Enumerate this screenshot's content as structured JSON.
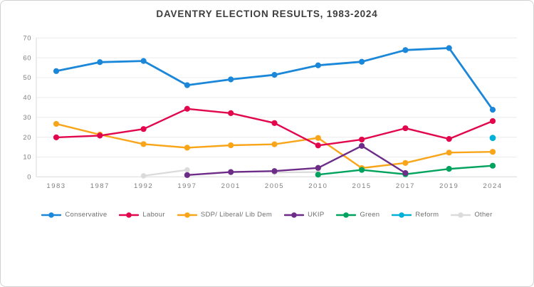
{
  "page": {
    "background": "#ffffff",
    "frame_border_color": "#d2d2d2",
    "gridline_color": "#ececec",
    "axis_line_color": "#d9d9d9",
    "tick_label_color": "#7f7f7f",
    "title_color": "#3e3e3e",
    "legend_text_color": "#6e6e6e"
  },
  "chart_data": {
    "type": "line",
    "title": "DAVENTRY ELECTION RESULTS, 1983-2024",
    "xlabel": "",
    "ylabel": "",
    "ylim": [
      0,
      70
    ],
    "yticks": [
      0,
      10,
      20,
      30,
      40,
      50,
      60,
      70
    ],
    "grid": true,
    "legend_position": "bottom",
    "categories": [
      "1983",
      "1987",
      "1992",
      "1997",
      "2001",
      "2005",
      "2010",
      "2015",
      "2017",
      "2019",
      "2024"
    ],
    "series": [
      {
        "name": "Conservative",
        "color": "#1b87d8",
        "values": [
          53.3,
          57.8,
          58.4,
          46.2,
          49.1,
          51.4,
          56.2,
          58.0,
          63.9,
          64.9,
          33.8
        ]
      },
      {
        "name": "Labour",
        "color": "#e2074d",
        "values": [
          19.9,
          20.8,
          24.1,
          34.3,
          32.1,
          27.1,
          15.8,
          18.8,
          24.5,
          19.1,
          28.1
        ]
      },
      {
        "name": "SDP/ Liberal/ Lib Dem",
        "color": "#f9a51a",
        "values": [
          26.7,
          21.3,
          16.5,
          14.7,
          15.9,
          16.4,
          19.6,
          4.4,
          7.0,
          12.2,
          12.6
        ]
      },
      {
        "name": "UKIP",
        "color": "#6c2c87",
        "values": [
          null,
          null,
          null,
          0.9,
          2.4,
          2.9,
          4.5,
          15.6,
          1.9,
          null,
          null
        ]
      },
      {
        "name": "Green",
        "color": "#00a35e",
        "values": [
          null,
          null,
          null,
          null,
          null,
          null,
          1.1,
          3.5,
          1.3,
          4.0,
          5.6
        ]
      },
      {
        "name": "Reform",
        "color": "#00b0d8",
        "values": [
          null,
          null,
          null,
          null,
          null,
          null,
          null,
          null,
          null,
          null,
          19.6
        ]
      },
      {
        "name": "Other",
        "color": "#dbdbdb",
        "values": [
          null,
          null,
          0.5,
          3.5,
          null,
          2.2,
          2.4,
          null,
          null,
          null,
          null
        ]
      }
    ]
  }
}
